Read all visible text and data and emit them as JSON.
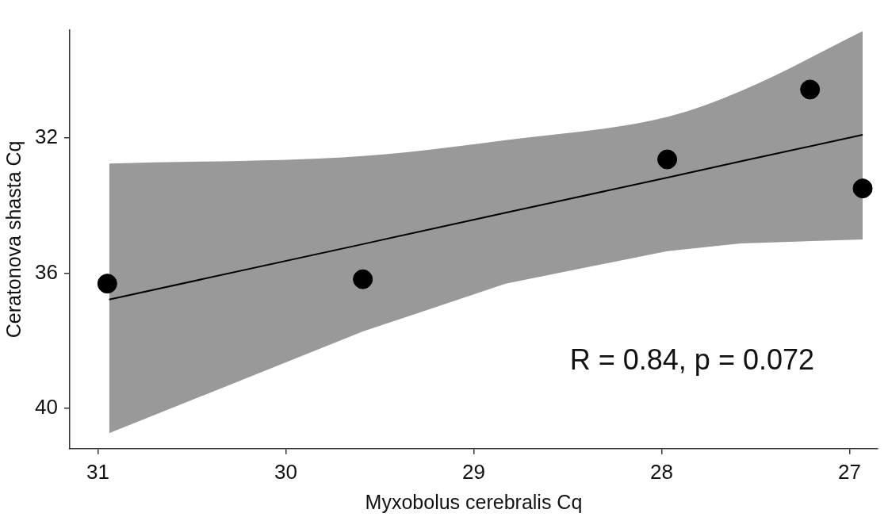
{
  "chart_data": {
    "type": "scatter",
    "xlabel": "Myxobolus cerebralis Cq",
    "ylabel": "Ceratonova shasta Cq",
    "xlim": [
      31.15,
      26.85
    ],
    "xticks": [
      31,
      30,
      29,
      28,
      27
    ],
    "ylim": [
      41.2,
      28.8
    ],
    "yticks": [
      32,
      36,
      40
    ],
    "grid": false,
    "legend": false,
    "marker": "circle",
    "annotations": [
      "R = 0.84, p = 0.072"
    ],
    "series": [
      {
        "type": "line",
        "marker": "none",
        "color": "#000000",
        "x": [
          30.94,
          29.59,
          28.83,
          27.97,
          27.58,
          26.93
        ],
        "values": [
          36.78,
          35.14,
          34.21,
          33.17,
          32.69,
          31.9
        ],
        "lower": [
          40.74,
          37.73,
          36.31,
          35.35,
          35.12,
          35.0
        ],
        "upper": [
          32.75,
          32.53,
          32.06,
          31.37,
          30.61,
          28.83
        ]
      },
      {
        "color": "#000000",
        "x": [
          30.95,
          29.59,
          27.97,
          27.21,
          26.93
        ],
        "values": [
          36.31,
          36.18,
          32.63,
          30.56,
          33.49
        ]
      }
    ]
  }
}
